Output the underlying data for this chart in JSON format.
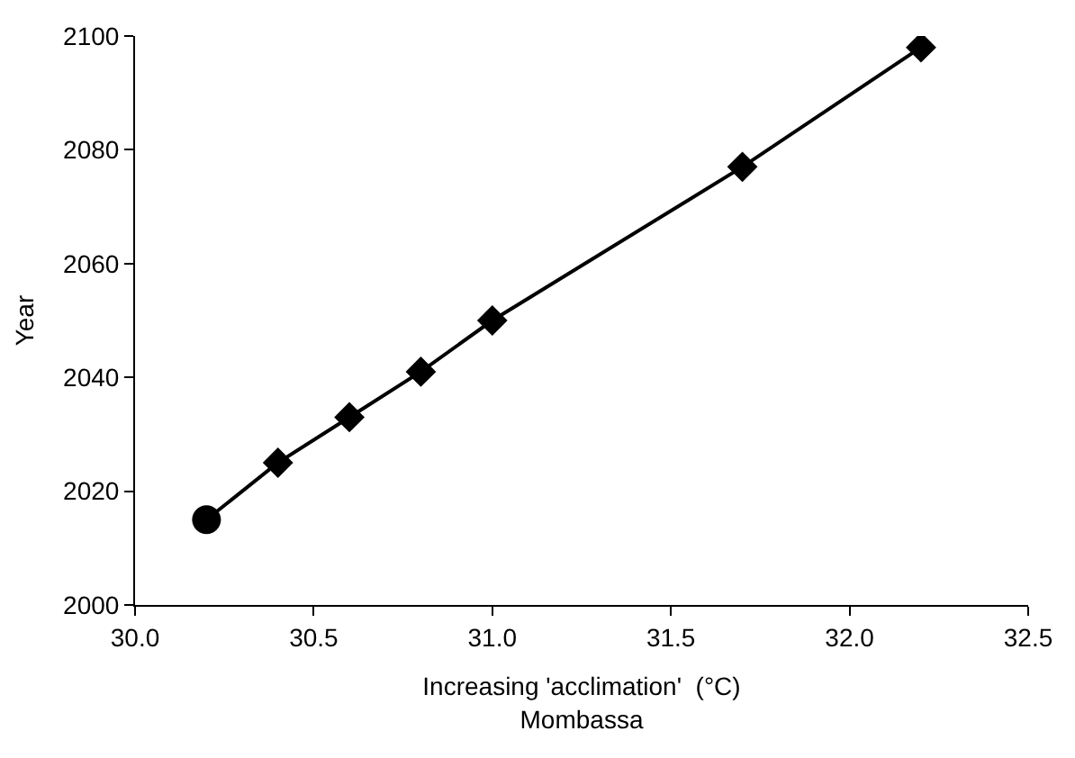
{
  "chart_data": {
    "type": "line",
    "xlabel": "Increasing 'acclimation'  (°C)\nMombassa",
    "ylabel": "Year",
    "xlim": [
      30.0,
      32.5
    ],
    "xticks": [
      {
        "value": 30.0,
        "label": "30.0"
      },
      {
        "value": 30.5,
        "label": "30.5"
      },
      {
        "value": 31.0,
        "label": "31.0"
      },
      {
        "value": 31.5,
        "label": "31.5"
      },
      {
        "value": 32.0,
        "label": "32.0"
      },
      {
        "value": 32.5,
        "label": "32.5"
      }
    ],
    "ylim": [
      2000,
      2100
    ],
    "yticks": [
      2000,
      2020,
      2040,
      2060,
      2080,
      2100
    ],
    "series": [
      {
        "marker": "none",
        "color": "#000000",
        "x": [
          30.2,
          30.4,
          30.6,
          30.8,
          31.0,
          31.7,
          32.2
        ],
        "values": [
          2015,
          2025,
          2033,
          2041,
          2050,
          2077,
          2098
        ]
      },
      {
        "type": "scatter",
        "marker": "circle",
        "color": "#000000",
        "x": [
          30.2
        ],
        "values": [
          2015
        ]
      },
      {
        "type": "scatter",
        "marker": "diamond",
        "color": "#000000",
        "x": [
          30.4,
          30.6,
          30.8,
          31.0,
          31.7,
          32.2
        ],
        "values": [
          2025,
          2033,
          2041,
          2050,
          2077,
          2098
        ]
      }
    ]
  }
}
